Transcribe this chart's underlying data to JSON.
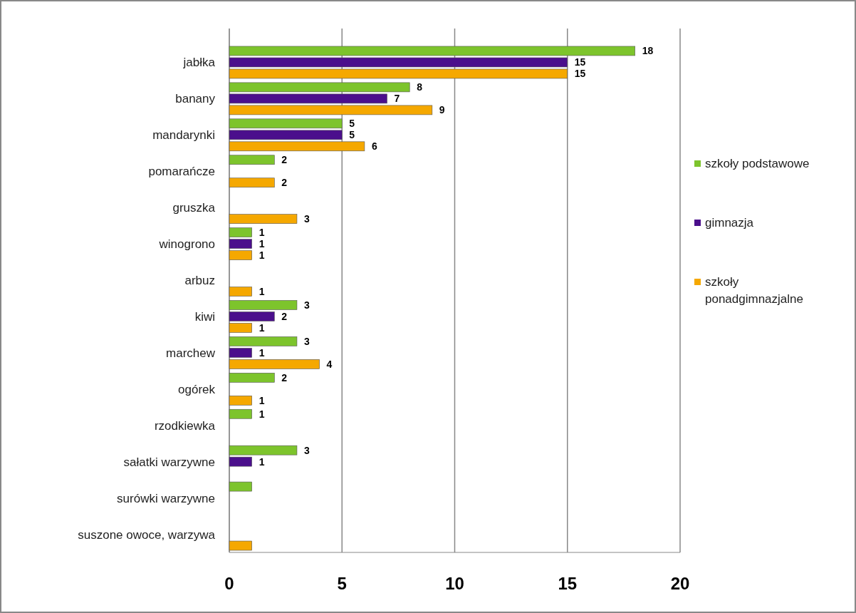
{
  "chart_data": {
    "type": "bar",
    "orientation": "horizontal",
    "categories": [
      "jabłka",
      "banany",
      "mandarynki",
      "pomarańcze",
      "gruszka",
      "winogrono",
      "arbuz",
      "kiwi",
      "marchew",
      "ogórek",
      "rzodkiewka",
      "sałatki warzywne",
      "surówki warzywne",
      "suszone owoce, warzywa"
    ],
    "series": [
      {
        "name": "szkoły podstawowe",
        "color": "#7dc42c",
        "values": [
          18,
          8,
          5,
          2,
          null,
          1,
          null,
          3,
          3,
          2,
          1,
          3,
          1,
          null
        ],
        "value_labels": [
          "18",
          "8",
          "5",
          "2",
          null,
          "1",
          null,
          "3",
          "3",
          "2",
          "1",
          "3",
          null,
          null
        ]
      },
      {
        "name": "gimnazja",
        "color": "#4b0f8c",
        "values": [
          15,
          7,
          5,
          null,
          null,
          1,
          null,
          2,
          1,
          null,
          null,
          1,
          null,
          null
        ],
        "value_labels": [
          "15",
          "7",
          "5",
          null,
          null,
          "1",
          null,
          "2",
          "1",
          null,
          null,
          "1",
          null,
          null
        ]
      },
      {
        "name": "szkoły ponadgimnazjalne",
        "color": "#f5a800",
        "values": [
          15,
          9,
          6,
          2,
          3,
          1,
          1,
          1,
          4,
          1,
          null,
          null,
          null,
          1
        ],
        "value_labels": [
          "15",
          "9",
          "6",
          "2",
          "3",
          "1",
          "1",
          "1",
          "4",
          "1",
          null,
          null,
          null,
          null
        ]
      }
    ],
    "xlim": [
      0,
      20
    ],
    "xticks": [
      0,
      5,
      10,
      15,
      20
    ],
    "grid": "x",
    "legend": "right"
  }
}
